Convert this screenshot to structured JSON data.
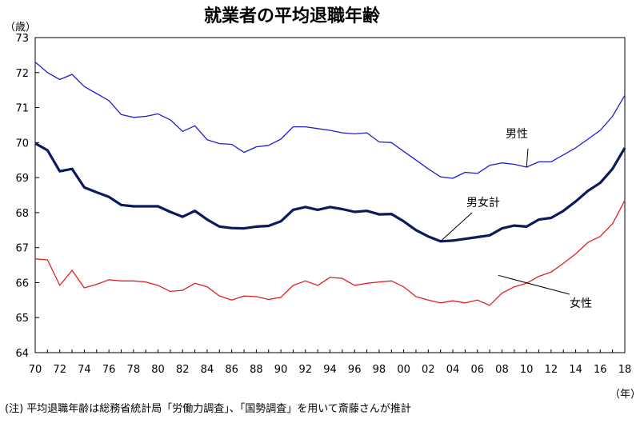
{
  "chart_data": {
    "type": "line",
    "title": "就業者の平均退職年齢",
    "ylabel": "（歳）",
    "xlabel": "（年）",
    "ylim": [
      64,
      73
    ],
    "yticks": [
      64,
      65,
      66,
      67,
      68,
      69,
      70,
      71,
      72,
      73
    ],
    "x": [
      1970,
      1971,
      1972,
      1973,
      1974,
      1975,
      1976,
      1977,
      1978,
      1979,
      1980,
      1981,
      1982,
      1983,
      1984,
      1985,
      1986,
      1987,
      1988,
      1989,
      1990,
      1991,
      1992,
      1993,
      1994,
      1995,
      1996,
      1997,
      1998,
      1999,
      2000,
      2001,
      2002,
      2003,
      2004,
      2005,
      2006,
      2007,
      2008,
      2009,
      2010,
      2011,
      2012,
      2013,
      2014,
      2015,
      2016,
      2017,
      2018
    ],
    "xticks": [
      "70",
      "72",
      "74",
      "76",
      "78",
      "80",
      "82",
      "84",
      "86",
      "88",
      "90",
      "92",
      "94",
      "96",
      "98",
      "00",
      "02",
      "04",
      "06",
      "08",
      "10",
      "12",
      "14",
      "16",
      "18"
    ],
    "series": [
      {
        "name": "男性",
        "color": "#1f1fcc",
        "width": 1.3,
        "values": [
          72.3,
          72.0,
          71.8,
          71.95,
          71.6,
          71.4,
          71.2,
          70.8,
          70.72,
          70.75,
          70.82,
          70.65,
          70.32,
          70.48,
          70.08,
          69.97,
          69.95,
          69.72,
          69.88,
          69.92,
          70.1,
          70.45,
          70.45,
          70.4,
          70.35,
          70.28,
          70.25,
          70.28,
          70.02,
          70.0,
          69.75,
          69.5,
          69.25,
          69.02,
          68.98,
          69.15,
          69.12,
          69.35,
          69.42,
          69.38,
          69.3,
          69.45,
          69.45,
          69.65,
          69.85,
          70.1,
          70.35,
          70.75,
          71.35
        ]
      },
      {
        "name": "男女計",
        "color": "#0a1a5c",
        "width": 3.2,
        "values": [
          69.98,
          69.78,
          69.18,
          69.25,
          68.72,
          68.58,
          68.45,
          68.22,
          68.18,
          68.18,
          68.18,
          68.02,
          67.88,
          68.05,
          67.8,
          67.6,
          67.56,
          67.55,
          67.6,
          67.62,
          67.75,
          68.08,
          68.16,
          68.08,
          68.16,
          68.1,
          68.02,
          68.05,
          67.95,
          67.96,
          67.75,
          67.5,
          67.32,
          67.18,
          67.2,
          67.25,
          67.3,
          67.35,
          67.55,
          67.63,
          67.6,
          67.8,
          67.85,
          68.05,
          68.32,
          68.62,
          68.85,
          69.25,
          69.85
        ]
      },
      {
        "name": "女性",
        "color": "#e02020",
        "width": 1.3,
        "values": [
          66.68,
          66.65,
          65.92,
          66.35,
          65.85,
          65.95,
          66.08,
          66.05,
          66.05,
          66.02,
          65.92,
          65.75,
          65.78,
          65.98,
          65.88,
          65.62,
          65.5,
          65.62,
          65.6,
          65.52,
          65.58,
          65.92,
          66.05,
          65.92,
          66.15,
          66.12,
          65.92,
          65.98,
          66.02,
          66.05,
          65.88,
          65.6,
          65.5,
          65.42,
          65.48,
          65.42,
          65.5,
          65.35,
          65.7,
          65.88,
          65.98,
          66.18,
          66.3,
          66.55,
          66.82,
          67.15,
          67.32,
          67.68,
          68.35
        ]
      }
    ],
    "annotations": [
      {
        "text": "男性",
        "series": "男性"
      },
      {
        "text": "男女計",
        "series": "男女計"
      },
      {
        "text": "女性",
        "series": "女性"
      }
    ],
    "note": "(注) 平均退職年齢は総務省統計局「労働力調査」、「国勢調査」を用いて斎藤さんが推計"
  }
}
